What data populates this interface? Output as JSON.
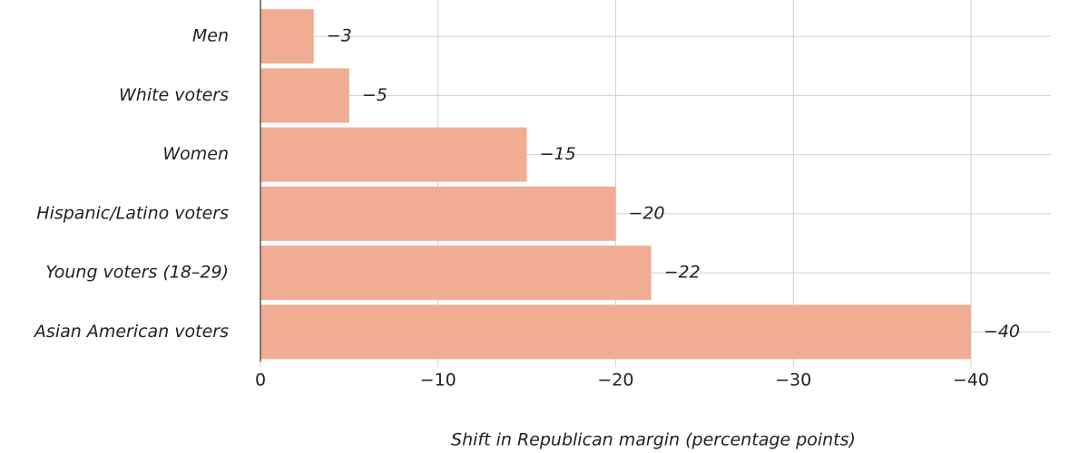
{
  "chart_data": {
    "type": "bar",
    "orientation": "horizontal",
    "x_label": "Shift in Republican margin (percentage points)",
    "categories": [
      "Men",
      "White voters",
      "Women",
      "Hispanic/Latino voters",
      "Young voters (18–29)",
      "Asian American voters"
    ],
    "values": [
      -3,
      -5,
      -15,
      -20,
      -22,
      -40
    ],
    "value_labels": [
      "−3",
      "−5",
      "−15",
      "−20",
      "−22",
      "−40"
    ],
    "color": "#f0ad94",
    "xlim": [
      0,
      -44.5
    ],
    "xticks": [
      0,
      {
        "value": -10,
        "label": "−10"
      },
      {
        "value": -20,
        "label": "−20"
      },
      {
        "value": -30,
        "label": "−30"
      },
      {
        "value": -40,
        "label": "−40"
      }
    ],
    "grid": true
  }
}
